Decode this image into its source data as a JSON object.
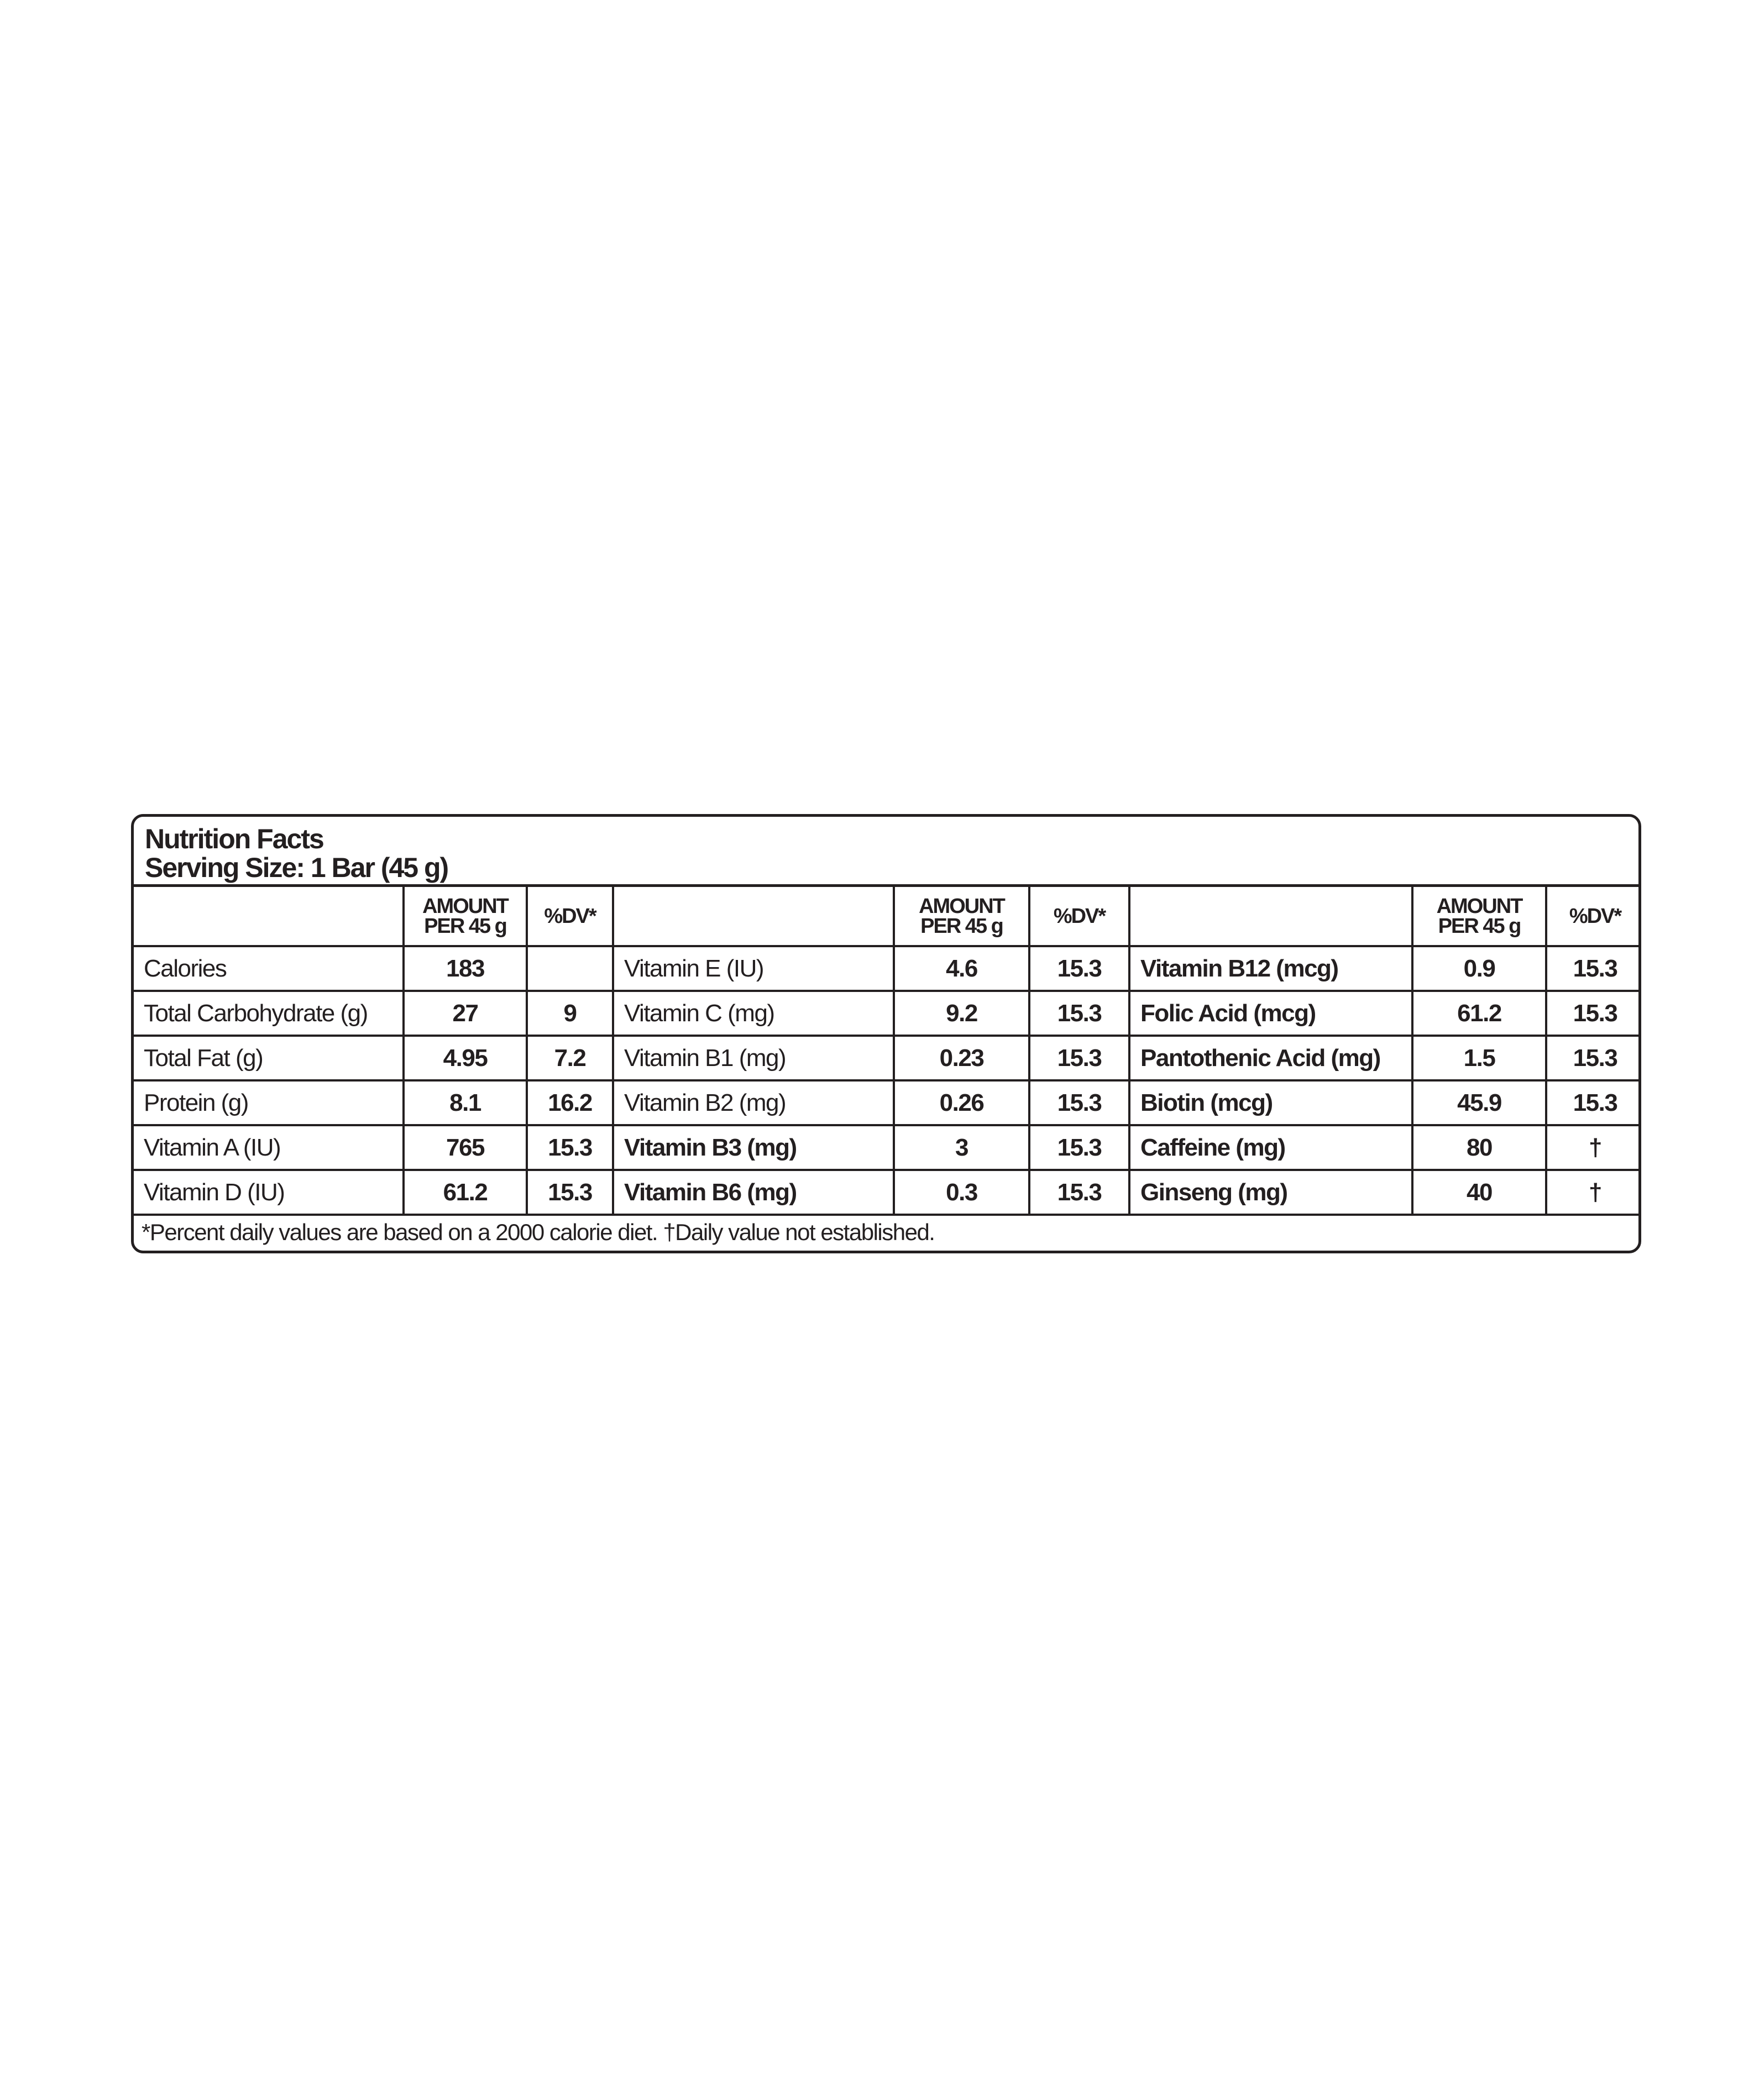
{
  "title": "Nutrition Facts",
  "serving_size": "Serving Size: 1 Bar (45 g)",
  "columns": {
    "amount_line1": "AMOUNT",
    "amount_line2": "PER 45 g",
    "dv": "%DV*"
  },
  "groups": [
    [
      {
        "name": "Calories",
        "amount": "183",
        "dv": ""
      },
      {
        "name": "Total Carbohydrate (g)",
        "amount": "27",
        "dv": "9"
      },
      {
        "name": "Total Fat (g)",
        "amount": "4.95",
        "dv": "7.2"
      },
      {
        "name": "Protein (g)",
        "amount": "8.1",
        "dv": "16.2"
      },
      {
        "name": "Vitamin A (IU)",
        "amount": "765",
        "dv": "15.3"
      },
      {
        "name": "Vitamin D (IU)",
        "amount": "61.2",
        "dv": "15.3"
      }
    ],
    [
      {
        "name": "Vitamin E (IU)",
        "amount": "4.6",
        "dv": "15.3"
      },
      {
        "name": "Vitamin C (mg)",
        "amount": "9.2",
        "dv": "15.3"
      },
      {
        "name": "Vitamin B1 (mg)",
        "amount": "0.23",
        "dv": "15.3"
      },
      {
        "name": "Vitamin B2 (mg)",
        "amount": "0.26",
        "dv": "15.3"
      },
      {
        "name": "Vitamin B3 (mg)",
        "amount": "3",
        "dv": "15.3",
        "bold": true
      },
      {
        "name": "Vitamin B6 (mg)",
        "amount": "0.3",
        "dv": "15.3",
        "bold": true
      }
    ],
    [
      {
        "name": "Vitamin B12 (mcg)",
        "amount": "0.9",
        "dv": "15.3",
        "bold": true
      },
      {
        "name": "Folic Acid (mcg)",
        "amount": "61.2",
        "dv": "15.3",
        "bold": true
      },
      {
        "name": "Pantothenic Acid (mg)",
        "amount": "1.5",
        "dv": "15.3",
        "bold": true
      },
      {
        "name": "Biotin (mcg)",
        "amount": "45.9",
        "dv": "15.3",
        "bold": true
      },
      {
        "name": "Caffeine (mg)",
        "amount": "80",
        "dv": "†",
        "bold": true
      },
      {
        "name": "Ginseng (mg)",
        "amount": "40",
        "dv": "†",
        "bold": true
      }
    ]
  ],
  "footer": "*Percent daily values are based on a 2000 calorie diet. †Daily value not established."
}
